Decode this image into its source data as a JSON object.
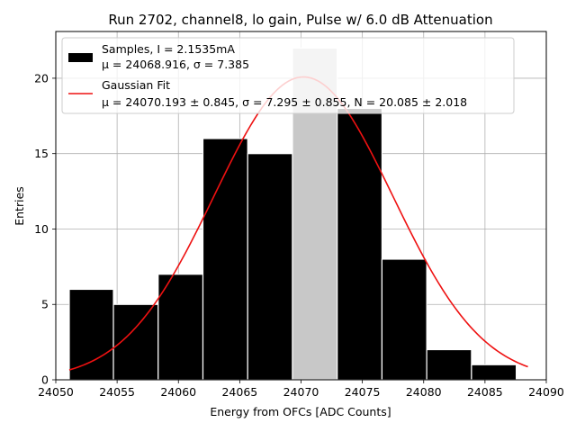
{
  "chart_data": {
    "type": "bar",
    "title": "Run 2702, channel8, lo gain, Pulse w/ 6.0 dB Attenuation",
    "xlabel": "Energy from OFCs [ADC Counts]",
    "ylabel": "Entries",
    "xlim": [
      24050,
      24090
    ],
    "ylim": [
      0,
      23.1
    ],
    "xticks": [
      "24050",
      "24055",
      "24060",
      "24065",
      "24070",
      "24075",
      "24080",
      "24085",
      "24090"
    ],
    "yticks": [
      "0",
      "5",
      "10",
      "15",
      "20"
    ],
    "grid": true,
    "legend_position": "top-left",
    "histogram": {
      "name": "Samples, I = 2.1535mA",
      "stats": "μ = 24068.916, σ = 7.385",
      "bin_edges": [
        24051.1,
        24054.7,
        24058.35,
        24062.0,
        24065.65,
        24069.3,
        24072.95,
        24076.6,
        24080.25,
        24083.9,
        24087.55
      ],
      "counts": [
        6,
        5,
        7,
        16,
        15,
        22,
        18,
        8,
        2,
        1
      ],
      "color": "#000000",
      "highlight_bin": 5,
      "highlight_color": "#c8c8c8"
    },
    "fit": {
      "name": "Gaussian Fit",
      "stats": "μ = 24070.193 ± 0.845, σ = 7.295 ± 0.855, N = 20.085 ± 2.018",
      "mu": 24070.193,
      "sigma": 7.295,
      "amplitude": 20.085,
      "x_range": [
        24051.1,
        24088.5
      ],
      "color": "#ee1111"
    }
  }
}
